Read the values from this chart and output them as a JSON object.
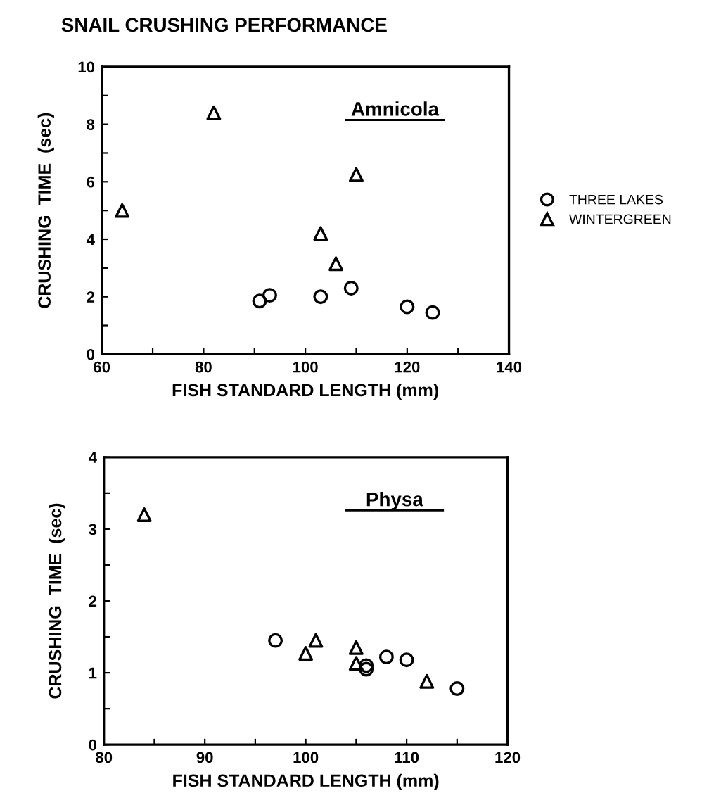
{
  "chart_data": [
    {
      "type": "scatter",
      "title": "SNAIL CRUSHING PERFORMANCE",
      "xlabel": "FISH STANDARD LENGTH (mm)",
      "ylabel": "CRUSHING  TIME  (sec)",
      "annotations": [
        "Amnicola"
      ],
      "xlim": [
        60,
        140
      ],
      "xticks": [
        60,
        {
          "value": 70,
          "label": null
        },
        80,
        {
          "value": 90,
          "label": null
        },
        100,
        {
          "value": 110,
          "label": null
        },
        120,
        {
          "value": 130,
          "label": null
        },
        140
      ],
      "ylim": [
        0,
        10
      ],
      "yticks": [
        0,
        {
          "value": 1,
          "label": null
        },
        2,
        {
          "value": 3,
          "label": null
        },
        4,
        {
          "value": 5,
          "label": null
        },
        6,
        {
          "value": 7,
          "label": null
        },
        8,
        {
          "value": 9,
          "label": null
        },
        10
      ],
      "legend": "right",
      "grid": false,
      "series": [
        {
          "name": "THREE LAKES",
          "color": "#000000",
          "marker": "circle",
          "x": [
            91,
            93,
            103,
            109,
            120,
            125
          ],
          "values": [
            1.85,
            2.05,
            2.0,
            2.3,
            1.65,
            1.45
          ]
        },
        {
          "name": "WINTERGREEN",
          "color": "#000000",
          "marker": "triangle",
          "x": [
            64,
            82,
            103,
            106,
            110
          ],
          "values": [
            5.0,
            8.4,
            4.2,
            3.15,
            6.25
          ]
        }
      ]
    },
    {
      "type": "scatter",
      "xlabel": "FISH STANDARD LENGTH (mm)",
      "ylabel": "CRUSHING  TIME  (sec)",
      "annotations": [
        "Physa"
      ],
      "xlim": [
        80,
        120
      ],
      "xticks": [
        80,
        {
          "value": 85,
          "label": null
        },
        90,
        {
          "value": 95,
          "label": null
        },
        100,
        {
          "value": 105,
          "label": null
        },
        110,
        {
          "value": 115,
          "label": null
        },
        120
      ],
      "ylim": [
        0,
        4
      ],
      "yticks": [
        0,
        {
          "value": 0.5,
          "label": null
        },
        1,
        {
          "value": 1.5,
          "label": null
        },
        2,
        {
          "value": 2.5,
          "label": null
        },
        3,
        {
          "value": 3.5,
          "label": null
        },
        4
      ],
      "grid": false,
      "series": [
        {
          "color": "#000000",
          "marker": "circle",
          "x": [
            97,
            106,
            106,
            108,
            110,
            115
          ],
          "values": [
            1.45,
            1.1,
            1.05,
            1.22,
            1.18,
            0.78
          ]
        },
        {
          "color": "#000000",
          "marker": "triangle",
          "x": [
            84,
            100,
            101,
            105,
            105,
            112
          ],
          "values": [
            3.2,
            1.27,
            1.45,
            1.35,
            1.13,
            0.88
          ]
        }
      ]
    }
  ]
}
